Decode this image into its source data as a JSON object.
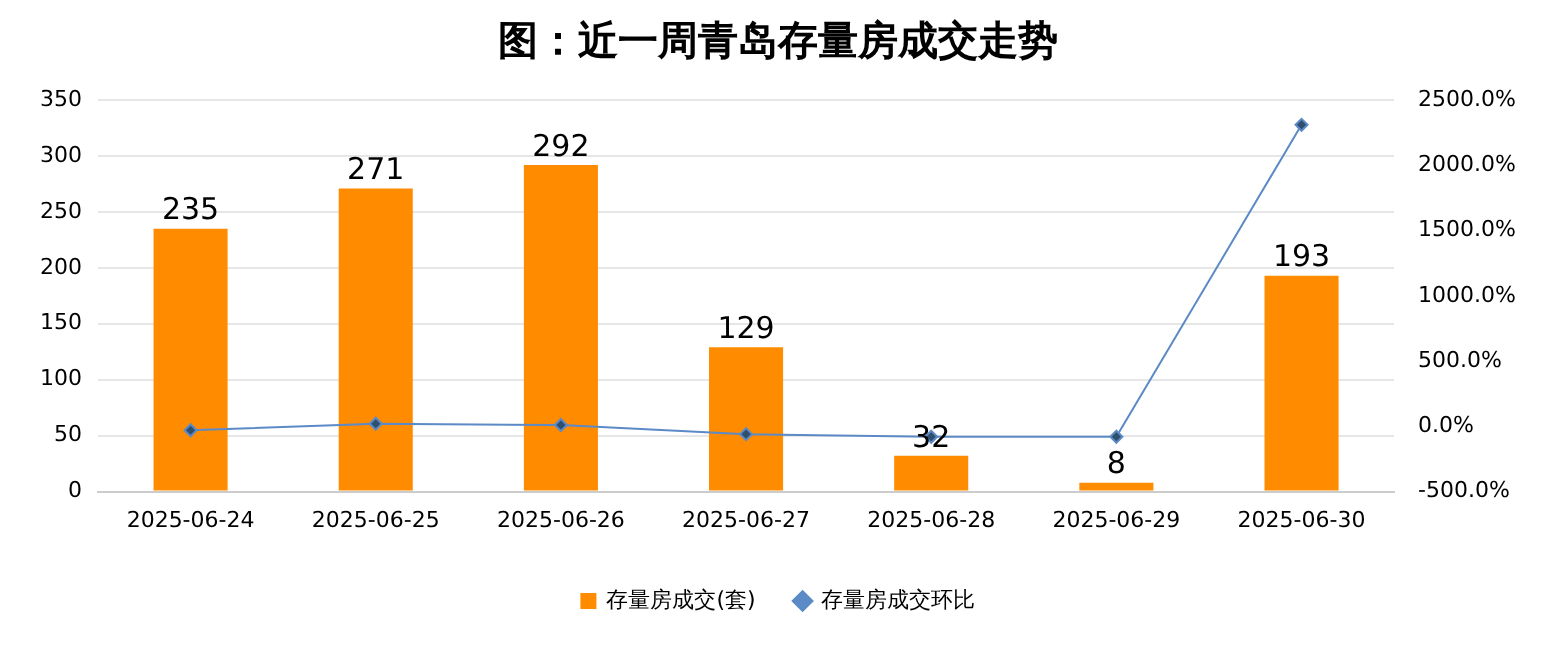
{
  "chart_data": {
    "type": "bar",
    "title": "图：近一周青岛存量房成交走势",
    "categories": [
      "2025-06-24",
      "2025-06-25",
      "2025-06-26",
      "2025-06-27",
      "2025-06-28",
      "2025-06-29",
      "2025-06-30"
    ],
    "series": [
      {
        "name": "存量房成交(套)",
        "color": "#ff8c00",
        "values": [
          235,
          271,
          292,
          129,
          32,
          8,
          193
        ],
        "value_labels": [
          "235",
          "271",
          "292",
          "129",
          "32",
          "8",
          "193"
        ]
      },
      {
        "name": "存量房成交环比",
        "type": "line",
        "axis": "y2",
        "color": "#5b8ac6",
        "marker": "diamond",
        "values": [
          -30,
          20,
          10,
          -60,
          -80,
          -80,
          2310
        ]
      }
    ],
    "ylim": [
      0,
      350
    ],
    "yticks": [
      0,
      50,
      100,
      150,
      200,
      250,
      300,
      350
    ],
    "y2lim": [
      -500,
      2500
    ],
    "y2ticks": [
      {
        "value": -500,
        "label": "-500.0%"
      },
      {
        "value": 0,
        "label": "0.0%"
      },
      {
        "value": 500,
        "label": "500.0%"
      },
      {
        "value": 1000,
        "label": "1000.0%"
      },
      {
        "value": 1500,
        "label": "1500.0%"
      },
      {
        "value": 2000,
        "label": "2000.0%"
      },
      {
        "value": 2500,
        "label": "2500.0%"
      }
    ],
    "grid": "y",
    "legend": "bottom"
  }
}
